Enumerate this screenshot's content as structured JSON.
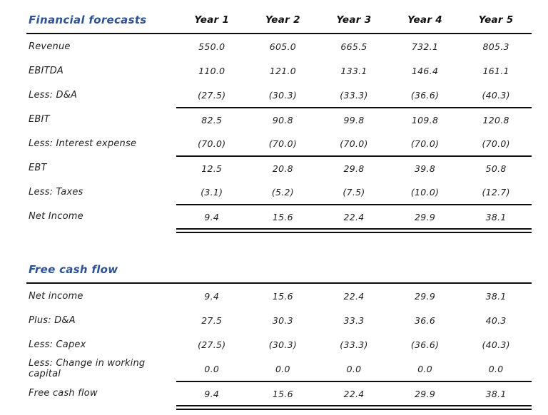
{
  "page": {
    "accent_color": "#2e5394",
    "text_color": "#1f1f1f",
    "rule_color": "#0d0d0d",
    "background_color": "#ffffff"
  },
  "tables": [
    {
      "title": "Financial forecasts",
      "columns": [
        "Year 1",
        "Year 2",
        "Year 3",
        "Year 4",
        "Year 5"
      ],
      "rows": [
        {
          "label": "Revenue",
          "values": [
            "550.0",
            "605.0",
            "665.5",
            "732.1",
            "805.3"
          ],
          "style": "normal"
        },
        {
          "label": "EBITDA",
          "values": [
            "110.0",
            "121.0",
            "133.1",
            "146.4",
            "161.1"
          ],
          "style": "normal"
        },
        {
          "label": "Less: D&A",
          "values": [
            "(27.5)",
            "(30.3)",
            "(33.3)",
            "(36.6)",
            "(40.3)"
          ],
          "style": "normal"
        },
        {
          "label": "EBIT",
          "values": [
            "82.5",
            "90.8",
            "99.8",
            "109.8",
            "120.8"
          ],
          "style": "subtotal"
        },
        {
          "label": "Less: Interest expense",
          "values": [
            "(70.0)",
            "(70.0)",
            "(70.0)",
            "(70.0)",
            "(70.0)"
          ],
          "style": "normal"
        },
        {
          "label": "EBT",
          "values": [
            "12.5",
            "20.8",
            "29.8",
            "39.8",
            "50.8"
          ],
          "style": "subtotal"
        },
        {
          "label": "Less: Taxes",
          "values": [
            "(3.1)",
            "(5.2)",
            "(7.5)",
            "(10.0)",
            "(12.7)"
          ],
          "style": "normal"
        },
        {
          "label": "Net Income",
          "values": [
            "9.4",
            "15.6",
            "22.4",
            "29.9",
            "38.1"
          ],
          "style": "total"
        }
      ]
    },
    {
      "title": "Free cash flow",
      "columns": [],
      "rows": [
        {
          "label": "Net income",
          "values": [
            "9.4",
            "15.6",
            "22.4",
            "29.9",
            "38.1"
          ],
          "style": "normal"
        },
        {
          "label": "Plus: D&A",
          "values": [
            "27.5",
            "30.3",
            "33.3",
            "36.6",
            "40.3"
          ],
          "style": "normal"
        },
        {
          "label": "Less: Capex",
          "values": [
            "(27.5)",
            "(30.3)",
            "(33.3)",
            "(36.6)",
            "(40.3)"
          ],
          "style": "normal"
        },
        {
          "label": "Less: Change in working capital",
          "values": [
            "0.0",
            "0.0",
            "0.0",
            "0.0",
            "0.0"
          ],
          "style": "normal"
        },
        {
          "label": "Free cash flow",
          "values": [
            "9.4",
            "15.6",
            "22.4",
            "29.9",
            "38.1"
          ],
          "style": "total"
        }
      ]
    }
  ]
}
